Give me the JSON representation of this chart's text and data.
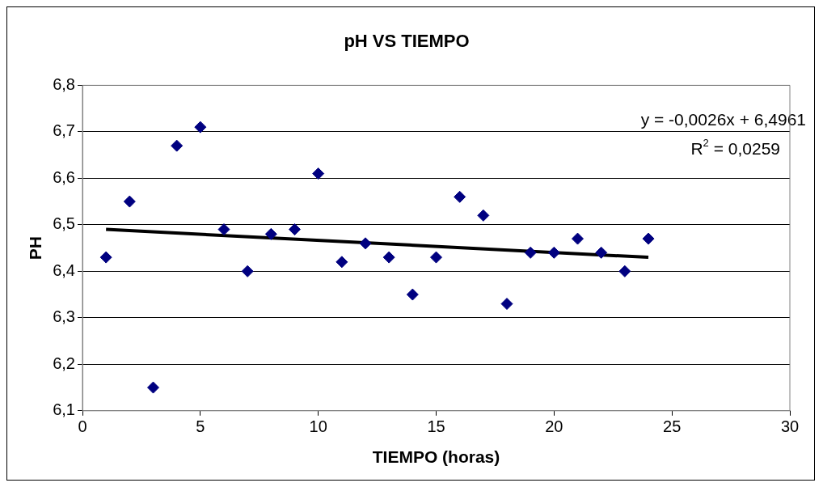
{
  "chart_data": {
    "type": "scatter",
    "title": "pH VS TIEMPO",
    "xlabel": "TIEMPO (horas)",
    "ylabel": "PH",
    "x": [
      1,
      2,
      3,
      4,
      5,
      6,
      7,
      8,
      9,
      10,
      11,
      12,
      13,
      14,
      15,
      16,
      17,
      18,
      19,
      20,
      21,
      22,
      23,
      24
    ],
    "series": [
      {
        "type": "scatter",
        "color": "#000080",
        "values": [
          6.43,
          6.55,
          6.15,
          6.67,
          6.71,
          6.49,
          6.4,
          6.48,
          6.49,
          6.61,
          6.42,
          6.46,
          6.43,
          6.35,
          6.43,
          6.56,
          6.52,
          6.33,
          6.44,
          6.44,
          6.47,
          6.44,
          6.4,
          6.47
        ]
      },
      {
        "type": "line",
        "marker": "none",
        "color": "#000000",
        "x": [
          1,
          24
        ],
        "values": [
          6.49,
          6.43
        ]
      }
    ],
    "xlim": [
      0,
      30
    ],
    "xticks": [
      0,
      5,
      10,
      15,
      20,
      25,
      30
    ],
    "ylim": [
      6.1,
      6.8
    ],
    "yticks": [
      {
        "value": 6.1,
        "label": "6,1"
      },
      {
        "value": 6.2,
        "label": "6,2"
      },
      {
        "value": 6.3,
        "label": "6,3"
      },
      {
        "value": 6.4,
        "label": "6,4"
      },
      {
        "value": 6.5,
        "label": "6,5"
      },
      {
        "value": 6.6,
        "label": "6,6"
      },
      {
        "value": 6.7,
        "label": "6,7"
      },
      {
        "value": 6.8,
        "label": "6,8"
      }
    ],
    "grid": "y",
    "legend": false,
    "marker": "diamond",
    "annotations": [
      "y = -0,0026x + 6,4961",
      "R$^{2}$ = 0,0259"
    ]
  }
}
